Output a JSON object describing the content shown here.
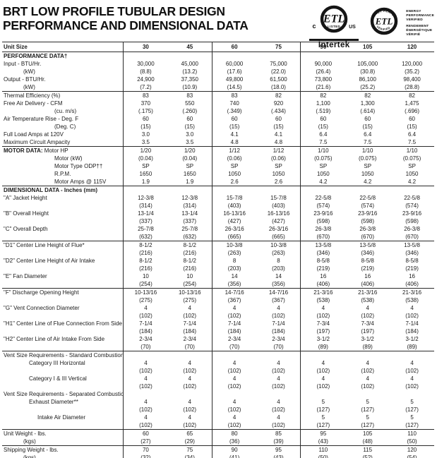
{
  "title": {
    "line1": "BRT LOW PROFILE TUBULAR DESIGN",
    "line2": "PERFORMANCE AND DIMENSIONAL DATA"
  },
  "certification": {
    "listed_mark": {
      "etl": "ETL",
      "listed": "LISTED",
      "c": "c",
      "us": "US",
      "intertek": "Intertek"
    },
    "verified_mark": {
      "etl": "ETL",
      "arc_top": "ENERGY PERFORMANCE",
      "arc_bottom": "VERIFIED",
      "side_lines": [
        "ENERGY",
        "PERFORMANCE",
        "VERIFIED",
        "RENDEMENT",
        "ÉNERGÉTIQUE",
        "VÉRIFIÉ"
      ]
    }
  },
  "table": {
    "header": {
      "label": "Unit Size",
      "columns": [
        "30",
        "45",
        "60",
        "75",
        "90",
        "105",
        "120"
      ]
    },
    "rows": [
      {
        "label": "PERFORMANCE DATA†",
        "bold": true
      },
      {
        "label": "Input - BTU/Hr.",
        "values": [
          "30,000",
          "45,000",
          "60,000",
          "75,000",
          "90,000",
          "105,000",
          "120,000"
        ]
      },
      {
        "label": "(kW)",
        "indent": 1,
        "values": [
          "(8.8)",
          "(13.2)",
          "(17.6)",
          "(22.0)",
          "(26.4)",
          "(30.8)",
          "(35.2)"
        ]
      },
      {
        "label": "Output - BTU/Hr.",
        "values": [
          "24,900",
          "37,350",
          "49,800",
          "61,500",
          "73,800",
          "86,100",
          "98,400"
        ]
      },
      {
        "label": "(kW)",
        "indent": 1,
        "values": [
          "(7.2)",
          "(10.9)",
          "(14.5)",
          "(18.0)",
          "(21.6)",
          "(25.2)",
          "(28.8)"
        ]
      },
      {
        "label": "Thermal Efficiency (%)",
        "rule": true,
        "values": [
          "83",
          "83",
          "83",
          "82",
          "82",
          "82",
          "82"
        ]
      },
      {
        "label": "Free Air Delivery - CFM",
        "values": [
          "370",
          "550",
          "740",
          "920",
          "1,100",
          "1,300",
          "1,475"
        ]
      },
      {
        "label": "(cu. m/s)",
        "indent": 4,
        "values": [
          "(.175)",
          "(.260)",
          "(.349)",
          "(.434)",
          "(.519)",
          "(.614)",
          "(.696)"
        ]
      },
      {
        "label": "Air Temperature Rise - Deg. F",
        "values": [
          "60",
          "60",
          "60",
          "60",
          "60",
          "60",
          "60"
        ]
      },
      {
        "label": "(Deg. C)",
        "indent": 4,
        "values": [
          "(15)",
          "(15)",
          "(15)",
          "(15)",
          "(15)",
          "(15)",
          "(15)"
        ]
      },
      {
        "label": "Full Load Amps at 120V",
        "values": [
          "3.0",
          "3.0",
          "4.1",
          "4.1",
          "6.4",
          "6.4",
          "6.4"
        ]
      },
      {
        "label": "Maximum Circuit Ampacity",
        "values": [
          "3.5",
          "3.5",
          "4.8",
          "4.8",
          "7.5",
          "7.5",
          "7.5"
        ]
      },
      {
        "prefix": "MOTOR DATA:",
        "label": "Motor HP",
        "rule": true,
        "values": [
          "1/20",
          "1/20",
          "1/12",
          "1/12",
          "1/10",
          "1/10",
          "1/10"
        ]
      },
      {
        "label": "Motor  (kW)",
        "indent": 4,
        "values": [
          "(0.04)",
          "(0.04)",
          "(0.06)",
          "(0.06)",
          "(0.075)",
          "(0.075)",
          "(0.075)"
        ]
      },
      {
        "label": "Motor Type ODP††",
        "indent": 4,
        "values": [
          "SP",
          "SP",
          "SP",
          "SP",
          "SP",
          "SP",
          "SP"
        ]
      },
      {
        "label": "R.P.M.",
        "indent": 4,
        "values": [
          "1650",
          "1650",
          "1050",
          "1050",
          "1050",
          "1050",
          "1050"
        ]
      },
      {
        "label": "Motor Amps @ 115V",
        "indent": 4,
        "values": [
          "1.9",
          "1.9",
          "2.6",
          "2.6",
          "4.2",
          "4.2",
          "4.2"
        ]
      },
      {
        "label": "DIMENSIONAL DATA - Inches (mm)",
        "bold": true,
        "rule": true
      },
      {
        "label": "\"A\" Jacket Height",
        "values": [
          "12-3/8",
          "12-3/8",
          "15-7/8",
          "15-7/8",
          "22-5/8",
          "22-5/8",
          "22-5/8"
        ]
      },
      {
        "label": "",
        "values": [
          "(314)",
          "(314)",
          "(403)",
          "(403)",
          "(574)",
          "(574)",
          "(574)"
        ]
      },
      {
        "label": "\"B\" Overall Height",
        "values": [
          "13-1/4",
          "13-1/4",
          "16-13/16",
          "16-13/16",
          "23-9/16",
          "23-9/16",
          "23-9/16"
        ]
      },
      {
        "label": "",
        "values": [
          "(337)",
          "(337)",
          "(427)",
          "(427)",
          "(598)",
          "(598)",
          "(598)"
        ]
      },
      {
        "label": "\"C\" Overall Depth",
        "values": [
          "25-7/8",
          "25-7/8",
          "26-3/16",
          "26-3/16",
          "26-3/8",
          "26-3/8",
          "26-3/8"
        ]
      },
      {
        "label": "",
        "values": [
          "(632)",
          "(632)",
          "(665)",
          "(665)",
          "(670)",
          "(670)",
          "(670)"
        ]
      },
      {
        "label": "\"D1\" Center Line Height of Flue*",
        "rule": true,
        "values": [
          "8-1/2",
          "8-1/2",
          "10-3/8",
          "10-3/8",
          "13-5/8",
          "13-5/8",
          "13-5/8"
        ]
      },
      {
        "label": "",
        "values": [
          "(216)",
          "(216)",
          "(263)",
          "(263)",
          "(346)",
          "(346)",
          "(346)"
        ]
      },
      {
        "label": "\"D2\" Center Line Height of Air Intake",
        "values": [
          "8-1/2",
          "8-1/2",
          "8",
          "8",
          "8-5/8",
          "8-5/8",
          "8-5/8"
        ]
      },
      {
        "label": "",
        "values": [
          "(216)",
          "(216)",
          "(203)",
          "(203)",
          "(219)",
          "(219)",
          "(219)"
        ]
      },
      {
        "label": "\"E\" Fan Diameter",
        "values": [
          "10",
          "10",
          "14",
          "14",
          "16",
          "16",
          "16"
        ]
      },
      {
        "label": "",
        "values": [
          "(254)",
          "(254)",
          "(356)",
          "(356)",
          "(406)",
          "(406)",
          "(406)"
        ]
      },
      {
        "label": "\"F\" Discharge Opening Height",
        "rule": true,
        "values": [
          "10-13/16",
          "10-13/16",
          "14-7/16",
          "14-7/16",
          "21-3/16",
          "21-3/16",
          "21-3/16"
        ]
      },
      {
        "label": "",
        "values": [
          "(275)",
          "(275)",
          "(367)",
          "(367)",
          "(538)",
          "(538)",
          "(538)"
        ]
      },
      {
        "label": "\"G\" Vent Connection Diameter",
        "values": [
          "4",
          "4",
          "4",
          "4",
          "4",
          "4",
          "4"
        ]
      },
      {
        "label": "",
        "values": [
          "(102)",
          "(102)",
          "(102)",
          "(102)",
          "(102)",
          "(102)",
          "(102)"
        ]
      },
      {
        "label": "\"H1\" Center Line of Flue Connection From Side",
        "values": [
          "7-1/4",
          "7-1/4",
          "7-1/4",
          "7-1/4",
          "7-3/4",
          "7-3/4",
          "7-1/4"
        ]
      },
      {
        "label": "",
        "values": [
          "(184)",
          "(184)",
          "(184)",
          "(184)",
          "(197)",
          "(197)",
          "(184)"
        ]
      },
      {
        "label": "\"H2\" Center Line of Air Intake From Side",
        "values": [
          "2-3/4",
          "2-3/4",
          "2-3/4",
          "2-3/4",
          "3-1/2",
          "3-1/2",
          "3-1/2"
        ]
      },
      {
        "label": "",
        "values": [
          "(70)",
          "(70)",
          "(70)",
          "(70)",
          "(89)",
          "(89)",
          "(89)"
        ]
      },
      {
        "label": "Vent Size Requirements - Standard Combustion",
        "rule": true
      },
      {
        "label": "Category III Horizontal",
        "indent": 2,
        "values": [
          "4",
          "4",
          "4",
          "4",
          "4",
          "4",
          "4"
        ]
      },
      {
        "label": "",
        "values": [
          "(102)",
          "(102)",
          "(102)",
          "(102)",
          "(102)",
          "(102)",
          "(102)"
        ]
      },
      {
        "label": "Category I & III Vertical",
        "indent": 2,
        "values": [
          "4",
          "4",
          "4",
          "4",
          "4",
          "4",
          "4"
        ]
      },
      {
        "label": "",
        "values": [
          "(102)",
          "(102)",
          "(102)",
          "(102)",
          "(102)",
          "(102)",
          "(102)"
        ]
      },
      {
        "label": "Vent Size Requirements - Separated Combustion"
      },
      {
        "label": "Exhaust Diameter**",
        "indent": 2,
        "values": [
          "4",
          "4",
          "4",
          "4",
          "5",
          "5",
          "5"
        ]
      },
      {
        "label": "",
        "values": [
          "(102)",
          "(102)",
          "(102)",
          "(102)",
          "(127)",
          "(127)",
          "(127)"
        ]
      },
      {
        "label": "Intake Air Diameter",
        "indent": 3,
        "values": [
          "4",
          "4",
          "4",
          "4",
          "5",
          "5",
          "5"
        ]
      },
      {
        "label": "",
        "values": [
          "(102)",
          "(102)",
          "(102)",
          "(102)",
          "(127)",
          "(127)",
          "(127)"
        ]
      },
      {
        "label": "Unit Weight - lbs.",
        "rule": true,
        "values": [
          "60",
          "65",
          "80",
          "85",
          "95",
          "105",
          "110"
        ]
      },
      {
        "label": "(kgs)",
        "indent": 1,
        "values": [
          "(27)",
          "(29)",
          "(36)",
          "(39)",
          "(43)",
          "(48)",
          "(50)"
        ]
      },
      {
        "label": "Shipping Weight - lbs.",
        "rule": true,
        "values": [
          "70",
          "75",
          "90",
          "95",
          "110",
          "115",
          "120"
        ]
      },
      {
        "label": "(kgs)",
        "indent": 1,
        "values": [
          "(32)",
          "(34)",
          "(41)",
          "(43)",
          "(50)",
          "(52)",
          "(54)"
        ]
      }
    ]
  }
}
